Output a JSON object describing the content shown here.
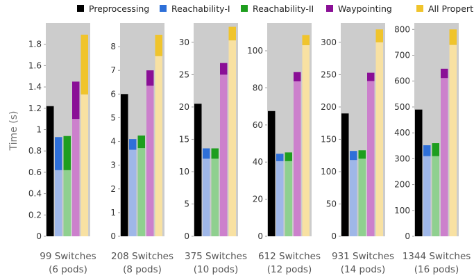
{
  "chart_data": {
    "type": "bar",
    "ylabel": "Time (s)",
    "legend": {
      "placement": "top",
      "entries": [
        {
          "name": "Preprocessing",
          "color": "#000000"
        },
        {
          "name": "Reachability-I",
          "color": "#2e6fd8"
        },
        {
          "name": "Reachability-II",
          "color": "#1e9e1e"
        },
        {
          "name": "Waypointing",
          "color": "#8a0f96"
        },
        {
          "name": "All Properties",
          "color": "#f0c42c"
        }
      ]
    },
    "series_light_colors": {
      "Reachability-I": "#9fb7e8",
      "Reachability-II": "#8fd08f",
      "Waypointing": "#cc80cc",
      "All Properties": "#f8e1a2"
    },
    "panel_background": "#cccccc",
    "panels": [
      {
        "label_line1": "99 Switches",
        "label_line2": "(6 pods)",
        "ylim": [
          0,
          2.0
        ],
        "ticks": [
          0,
          0.2,
          0.4,
          0.6,
          0.8,
          1,
          1.2,
          1.4,
          1.6,
          1.8
        ],
        "tick_labels": [
          "0",
          "0.2",
          "0.4",
          "0.6",
          "0.8",
          "1",
          "1.2",
          "1.4",
          "1.6",
          "1.8"
        ],
        "preprocessing": 1.22,
        "bars": [
          {
            "name": "Reachability-I",
            "base": 0.62,
            "total": 0.93
          },
          {
            "name": "Reachability-II",
            "base": 0.62,
            "total": 0.94
          },
          {
            "name": "Waypointing",
            "base": 1.1,
            "total": 1.45
          },
          {
            "name": "All Properties",
            "base": 1.33,
            "total": 1.89
          }
        ]
      },
      {
        "label_line1": "208 Switches",
        "label_line2": "(8 pods)",
        "ylim": [
          0,
          9.0
        ],
        "ticks": [
          0,
          1,
          2,
          3,
          4,
          5,
          6,
          7,
          8
        ],
        "tick_labels": [
          "0",
          "1",
          "2",
          "3",
          "4",
          "5",
          "6",
          "7",
          "8"
        ],
        "preprocessing": 6.0,
        "bars": [
          {
            "name": "Reachability-I",
            "base": 3.65,
            "total": 4.1
          },
          {
            "name": "Reachability-II",
            "base": 3.72,
            "total": 4.25
          },
          {
            "name": "Waypointing",
            "base": 6.35,
            "total": 7.0
          },
          {
            "name": "All Properties",
            "base": 7.6,
            "total": 8.5
          }
        ]
      },
      {
        "label_line1": "375 Switches",
        "label_line2": "(10 pods)",
        "ylim": [
          0,
          33.0
        ],
        "ticks": [
          0,
          5,
          10,
          15,
          20,
          25,
          30
        ],
        "tick_labels": [
          "0",
          "5",
          "10",
          "15",
          "20",
          "25",
          "30"
        ],
        "preprocessing": 20.5,
        "bars": [
          {
            "name": "Reachability-I",
            "base": 12.0,
            "total": 13.6
          },
          {
            "name": "Reachability-II",
            "base": 12.0,
            "total": 13.6
          },
          {
            "name": "Waypointing",
            "base": 25.0,
            "total": 26.8
          },
          {
            "name": "All Properties",
            "base": 30.3,
            "total": 32.4
          }
        ]
      },
      {
        "label_line1": "612 Switches",
        "label_line2": "(12 pods)",
        "ylim": [
          0,
          115.0
        ],
        "ticks": [
          0,
          20,
          40,
          60,
          80,
          100
        ],
        "tick_labels": [
          "0",
          "20",
          "40",
          "60",
          "80",
          "100"
        ],
        "preprocessing": 67.5,
        "bars": [
          {
            "name": "Reachability-I",
            "base": 40.5,
            "total": 44.5
          },
          {
            "name": "Reachability-II",
            "base": 40.5,
            "total": 45.2
          },
          {
            "name": "Waypointing",
            "base": 83.5,
            "total": 88.5
          },
          {
            "name": "All Properties",
            "base": 103.0,
            "total": 108.5
          }
        ]
      },
      {
        "label_line1": "931 Switches",
        "label_line2": "(14 pods)",
        "ylim": [
          0,
          330.0
        ],
        "ticks": [
          0,
          50,
          100,
          150,
          200,
          250,
          300
        ],
        "tick_labels": [
          "0",
          "50",
          "100",
          "150",
          "200",
          "250",
          "300"
        ],
        "preprocessing": 190.0,
        "bars": [
          {
            "name": "Reachability-I",
            "base": 118.0,
            "total": 132.0
          },
          {
            "name": "Reachability-II",
            "base": 120.0,
            "total": 133.0
          },
          {
            "name": "Waypointing",
            "base": 240.0,
            "total": 253.0
          },
          {
            "name": "All Properties",
            "base": 300.0,
            "total": 320.0
          }
        ]
      },
      {
        "label_line1": "1344 Switches",
        "label_line2": "(16 pods)",
        "ylim": [
          0,
          825.0
        ],
        "ticks": [
          0,
          100,
          200,
          300,
          400,
          500,
          600,
          700,
          800
        ],
        "tick_labels": [
          "0",
          "100",
          "200",
          "300",
          "400",
          "500",
          "600",
          "700",
          "800"
        ],
        "preprocessing": 490.0,
        "bars": [
          {
            "name": "Reachability-I",
            "base": 310.0,
            "total": 352.0
          },
          {
            "name": "Reachability-II",
            "base": 310.0,
            "total": 360.0
          },
          {
            "name": "Waypointing",
            "base": 612.0,
            "total": 648.0
          },
          {
            "name": "All Properties",
            "base": 740.0,
            "total": 800.0
          }
        ]
      }
    ]
  }
}
